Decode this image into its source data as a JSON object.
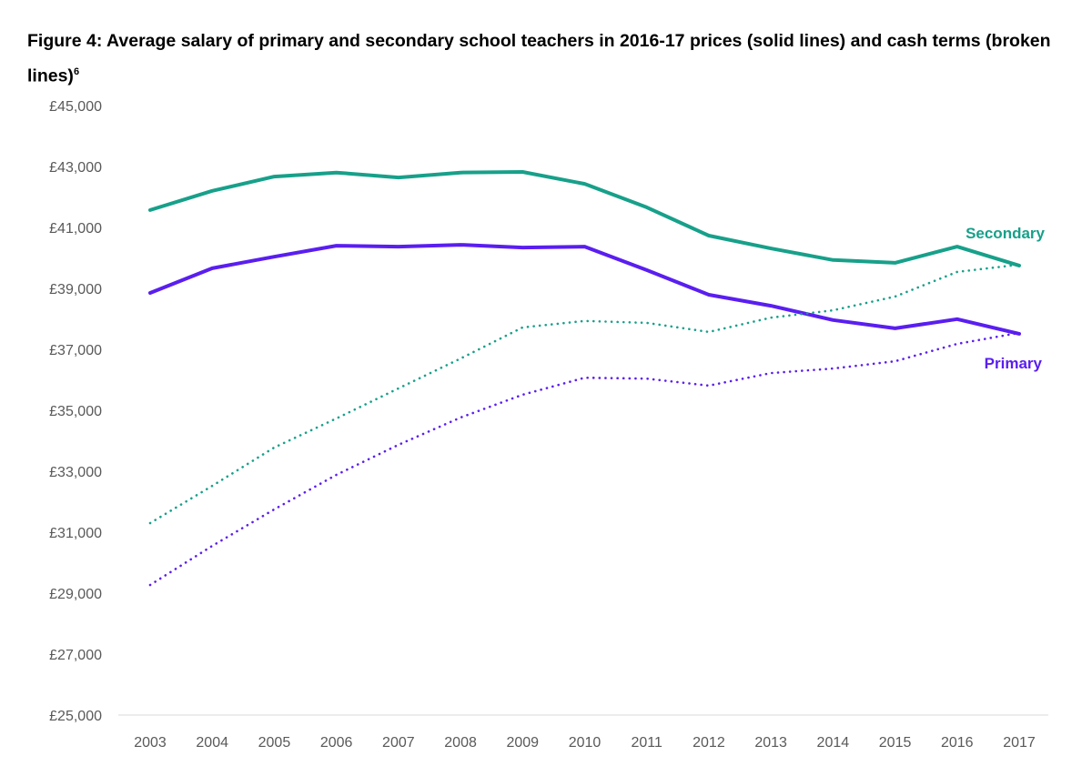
{
  "chart_data": {
    "type": "line",
    "title": "Figure 4: Average salary of primary and secondary school teachers in 2016-17 prices (solid lines) and cash terms (broken lines)",
    "title_footnote": "6",
    "xlabel": "",
    "ylabel": "",
    "ylim": [
      25000,
      45000
    ],
    "yticks": [
      25000,
      27000,
      29000,
      31000,
      33000,
      35000,
      37000,
      39000,
      41000,
      43000,
      45000
    ],
    "ytick_labels": [
      "£25,000",
      "£27,000",
      "£29,000",
      "£31,000",
      "£33,000",
      "£35,000",
      "£37,000",
      "£39,000",
      "£41,000",
      "£43,000",
      "£45,000"
    ],
    "x": [
      "2003",
      "2004",
      "2005",
      "2006",
      "2007",
      "2008",
      "2009",
      "2010",
      "2011",
      "2012",
      "2013",
      "2014",
      "2015",
      "2016",
      "2017"
    ],
    "grid": false,
    "series": [
      {
        "key": "secondary_real",
        "label": "Secondary",
        "style": "solid",
        "color": "#17a08a",
        "values": [
          41570,
          42200,
          42670,
          42800,
          42640,
          42800,
          42820,
          42430,
          41660,
          40730,
          40310,
          39930,
          39840,
          40370,
          39750
        ]
      },
      {
        "key": "primary_real",
        "label": "Primary",
        "style": "solid",
        "color": "#5a1ef0",
        "values": [
          38850,
          39660,
          40040,
          40400,
          40370,
          40430,
          40340,
          40370,
          39600,
          38790,
          38430,
          37960,
          37690,
          37990,
          37510
        ]
      },
      {
        "key": "secondary_cash",
        "style": "dotted",
        "color": "#17a08a",
        "values": [
          31300,
          32520,
          33780,
          34730,
          35720,
          36700,
          37720,
          37930,
          37870,
          37570,
          38040,
          38280,
          38730,
          39540,
          39780
        ]
      },
      {
        "key": "primary_cash",
        "style": "dotted",
        "color": "#5a1ef0",
        "values": [
          29270,
          30550,
          31750,
          32880,
          33870,
          34760,
          35510,
          36070,
          36040,
          35810,
          36220,
          36370,
          36610,
          37180,
          37540
        ]
      }
    ],
    "annotations": [
      {
        "text": "Secondary",
        "color": "#17a08a"
      },
      {
        "text": "Primary",
        "color": "#5a1ef0"
      }
    ]
  }
}
